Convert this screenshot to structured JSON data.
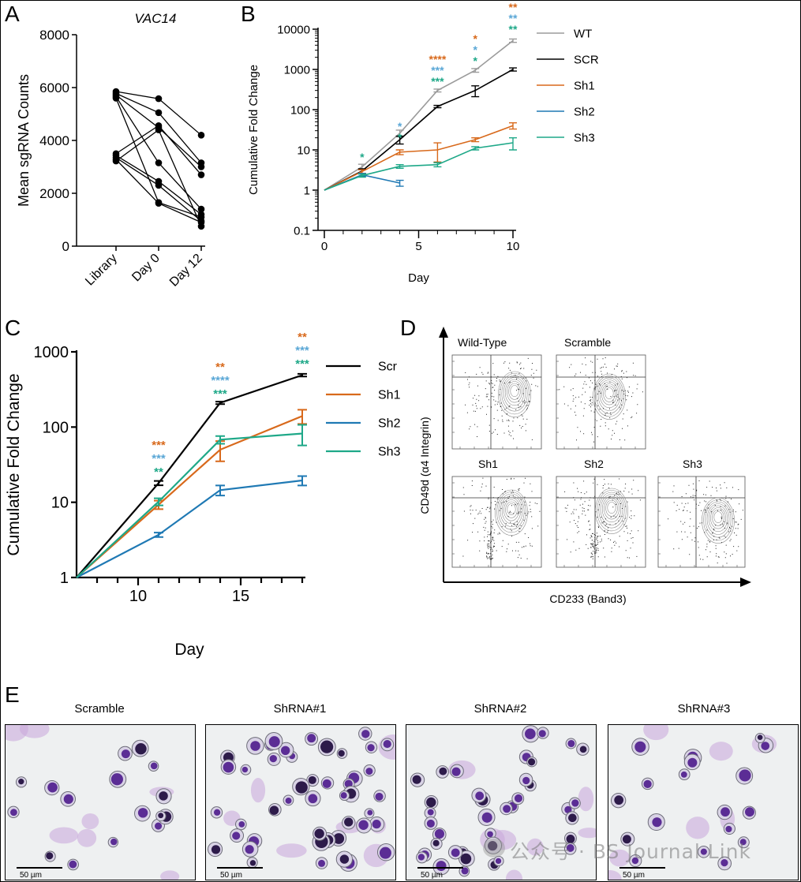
{
  "colors": {
    "WT": "#9b9b9b",
    "SCR": "#000000",
    "Sh1": "#d8691b",
    "Sh2": "#1f79b4",
    "Sh3": "#1ea888",
    "starSh1": "#d8691b",
    "starSh2": "#5aa7d6",
    "starSh3": "#1ea888"
  },
  "panels": {
    "a": {
      "letter": "A"
    },
    "b": {
      "letter": "B"
    },
    "c": {
      "letter": "C"
    },
    "d": {
      "letter": "D"
    },
    "e": {
      "letter": "E"
    }
  },
  "chart_data": [
    {
      "id": "A",
      "type": "line",
      "title": "VAC14",
      "ylabel": "Mean sgRNA Counts",
      "categories": [
        "Library",
        "Day 0",
        "Day 12"
      ],
      "ylim": [
        0,
        8000
      ],
      "yticks": [
        0,
        2000,
        4000,
        6000,
        8000
      ],
      "ytick_labels": [
        "0",
        "2000",
        "4000",
        "6000",
        "8000"
      ],
      "series": [
        {
          "values": [
            5850,
            5580,
            4200
          ]
        },
        {
          "values": [
            5780,
            5050,
            3150
          ]
        },
        {
          "values": [
            5720,
            4480,
            3000
          ]
        },
        {
          "values": [
            5660,
            3150,
            1400
          ]
        },
        {
          "values": [
            5600,
            1650,
            1100
          ]
        },
        {
          "values": [
            3500,
            4560,
            2700
          ]
        },
        {
          "values": [
            3430,
            2450,
            1200
          ]
        },
        {
          "values": [
            3350,
            2300,
            950
          ]
        },
        {
          "values": [
            3280,
            1620,
            900
          ]
        },
        {
          "values": [
            3220,
            4400,
            750
          ]
        }
      ]
    },
    {
      "id": "B",
      "type": "line",
      "xlabel": "Day",
      "ylabel": "Cumulative Fold Change",
      "yscale": "log",
      "xlim": [
        0,
        10
      ],
      "ylim": [
        0.1,
        10000
      ],
      "xticks": [
        0,
        5,
        10
      ],
      "xtick_labels": [
        "0",
        "5",
        "10"
      ],
      "yticks": [
        0.1,
        1,
        10,
        100,
        1000,
        10000
      ],
      "ytick_labels": [
        "0.1",
        "1",
        "10",
        "100",
        "1000",
        "10000"
      ],
      "series": [
        {
          "name": "WT",
          "color": "#9b9b9b",
          "x": [
            0,
            2,
            4,
            6,
            8,
            10
          ],
          "y": [
            1,
            3.8,
            26,
            300,
            950,
            5200
          ],
          "err": [
            0,
            0.6,
            5,
            25,
            100,
            500
          ]
        },
        {
          "name": "SCR",
          "color": "#000000",
          "x": [
            0,
            2,
            4,
            6,
            8,
            10
          ],
          "y": [
            1,
            3.0,
            18,
            120,
            300,
            1000
          ],
          "err": [
            0,
            0.4,
            4,
            8,
            90,
            90
          ]
        },
        {
          "name": "Sh1",
          "color": "#d8691b",
          "x": [
            0,
            2,
            4,
            6,
            8,
            10
          ],
          "y": [
            1,
            2.9,
            8.8,
            10,
            18,
            40
          ],
          "err": [
            0,
            0.3,
            1.2,
            5,
            2,
            7
          ]
        },
        {
          "name": "Sh2",
          "color": "#1f79b4",
          "x": [
            0,
            2,
            4
          ],
          "y": [
            1,
            2.4,
            1.5
          ],
          "err": [
            0,
            0.2,
            0.25
          ]
        },
        {
          "name": "Sh3",
          "color": "#1ea888",
          "x": [
            0,
            2,
            4,
            6,
            8,
            10
          ],
          "y": [
            1,
            2.3,
            3.9,
            4.3,
            11,
            15
          ],
          "err": [
            0,
            0.2,
            0.4,
            0.5,
            1,
            5
          ]
        }
      ],
      "annotations": [
        {
          "x": 2,
          "lines": [
            {
              "text": "*",
              "color": "#1ea888"
            }
          ]
        },
        {
          "x": 4,
          "lines": [
            {
              "text": "*",
              "color": "#5aa7d6"
            },
            {
              "text": "*",
              "color": "#1ea888"
            }
          ]
        },
        {
          "x": 6,
          "lines": [
            {
              "text": "****",
              "color": "#d8691b"
            },
            {
              "text": "***",
              "color": "#5aa7d6"
            },
            {
              "text": "***",
              "color": "#1ea888"
            }
          ]
        },
        {
          "x": 8,
          "lines": [
            {
              "text": "*",
              "color": "#d8691b"
            },
            {
              "text": "*",
              "color": "#5aa7d6"
            },
            {
              "text": "*",
              "color": "#1ea888"
            }
          ]
        },
        {
          "x": 10,
          "lines": [
            {
              "text": "**",
              "color": "#d8691b"
            },
            {
              "text": "**",
              "color": "#5aa7d6"
            },
            {
              "text": "**",
              "color": "#1ea888"
            }
          ]
        }
      ],
      "legend": [
        "WT",
        "SCR",
        "Sh1",
        "Sh2",
        "Sh3"
      ]
    },
    {
      "id": "C",
      "type": "line",
      "xlabel": "Day",
      "ylabel": "Cumulative Fold Change",
      "yscale": "log",
      "xlim": [
        7,
        18
      ],
      "ylim": [
        1,
        1000
      ],
      "xticks": [
        10,
        15
      ],
      "xtick_labels": [
        "10",
        "15"
      ],
      "xminor": [
        8,
        9,
        11,
        12,
        13,
        14,
        16,
        17,
        18
      ],
      "yticks": [
        1,
        10,
        100,
        1000
      ],
      "ytick_labels": [
        "1",
        "10",
        "100",
        "1000"
      ],
      "series": [
        {
          "name": "Scr",
          "color": "#000000",
          "x": [
            7,
            11,
            14,
            18
          ],
          "y": [
            1,
            18,
            210,
            490
          ],
          "err": [
            0,
            1.2,
            8,
            20
          ]
        },
        {
          "name": "Sh1",
          "color": "#d8691b",
          "x": [
            7,
            11,
            14,
            18
          ],
          "y": [
            1,
            9.3,
            50,
            140
          ],
          "err": [
            0,
            1.2,
            15,
            30
          ]
        },
        {
          "name": "Sh2",
          "color": "#1f79b4",
          "x": [
            7,
            11,
            14,
            18
          ],
          "y": [
            1,
            3.7,
            14.5,
            19.5
          ],
          "err": [
            0,
            0.25,
            2.2,
            2.8
          ]
        },
        {
          "name": "Sh3",
          "color": "#1ea888",
          "x": [
            7,
            11,
            14,
            18
          ],
          "y": [
            1,
            10.2,
            68,
            82
          ],
          "err": [
            0,
            1.1,
            8,
            25
          ]
        }
      ],
      "annotations": [
        {
          "x": 11,
          "lines": [
            {
              "text": "***",
              "color": "#d8691b"
            },
            {
              "text": "***",
              "color": "#5aa7d6"
            },
            {
              "text": "**",
              "color": "#1ea888"
            }
          ]
        },
        {
          "x": 14,
          "lines": [
            {
              "text": "**",
              "color": "#d8691b"
            },
            {
              "text": "****",
              "color": "#5aa7d6"
            },
            {
              "text": "***",
              "color": "#1ea888"
            }
          ]
        },
        {
          "x": 18,
          "lines": [
            {
              "text": "**",
              "color": "#d8691b"
            },
            {
              "text": "***",
              "color": "#5aa7d6"
            },
            {
              "text": "***",
              "color": "#1ea888"
            }
          ]
        }
      ],
      "legend": [
        "Scr",
        "Sh1",
        "Sh2",
        "Sh3"
      ]
    }
  ],
  "flow": {
    "ylabel": "CD49d (α4 Integrin)",
    "xlabel": "CD233 (Band3)",
    "plots": [
      {
        "label": "Wild-Type"
      },
      {
        "label": "Scramble"
      },
      {
        "label": "Sh1"
      },
      {
        "label": "Sh2"
      },
      {
        "label": "Sh3"
      }
    ]
  },
  "micrographs": [
    {
      "label": "Scramble",
      "scale": "50 µm"
    },
    {
      "label": "ShRNA#1",
      "scale": "50 µm"
    },
    {
      "label": "ShRNA#2",
      "scale": "50 µm"
    },
    {
      "label": "ShRNA#3",
      "scale": "50 µm"
    }
  ],
  "watermark": "公众号 · BS Journal Link"
}
